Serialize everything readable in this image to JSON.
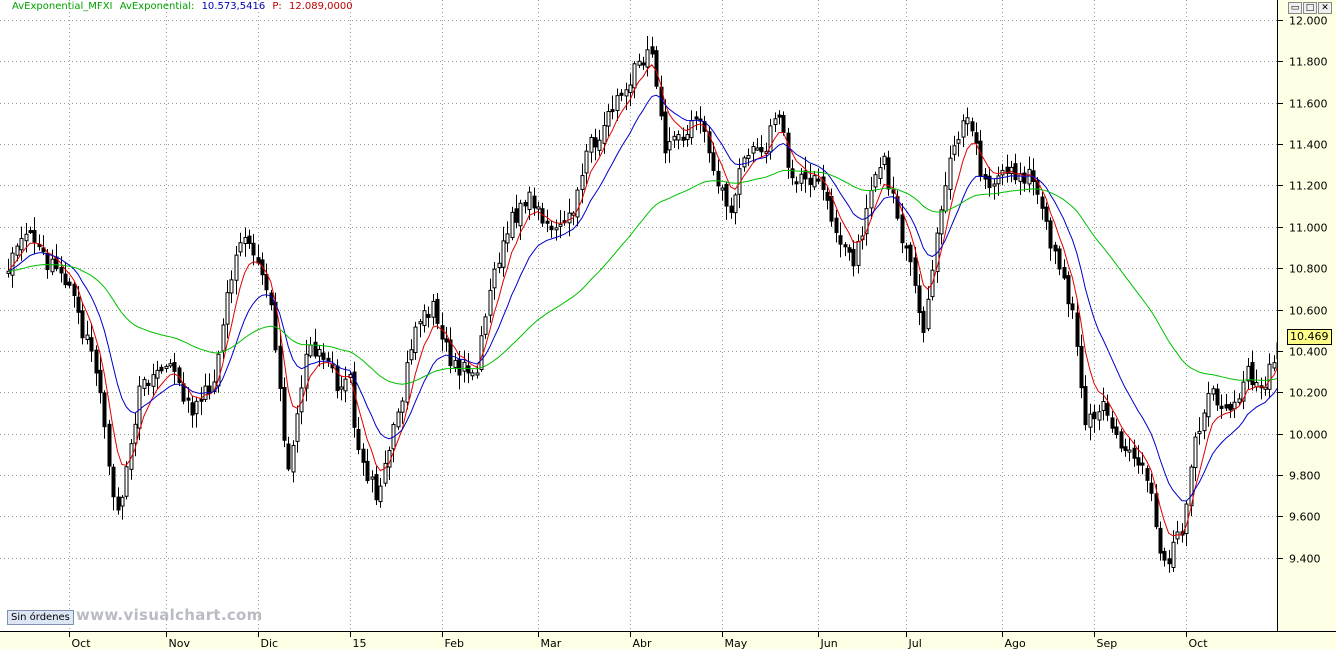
{
  "header": {
    "label1": "AvExponential_MFXI",
    "label2": "AvExponential:",
    "value": "10.573,5416",
    "plabel": "P:",
    "pvalue": "12.089,0000"
  },
  "window_buttons": {
    "restore": "▭",
    "maximize": "□",
    "close": "✕"
  },
  "orders_label": "Sin órdenes",
  "watermark": "www.visualchart.com",
  "last_value_label": "10.469",
  "colors": {
    "grid": "#9a9a9a",
    "fast_ma": "#e00000",
    "mid_ma": "#0000c8",
    "slow_ma": "#00c000",
    "axis_bg": "#ffffe6"
  },
  "chart_data": {
    "type": "candlestick",
    "ylim": [
      9200,
      12000
    ],
    "yticks": [
      9400,
      9600,
      9800,
      10000,
      10200,
      10400,
      10600,
      10800,
      11000,
      11200,
      11400,
      11600,
      11800,
      12000
    ],
    "ytick_labels": [
      "9.400",
      "9.600",
      "9.800",
      "10.000",
      "10.200",
      "10.400",
      "10.600",
      "10.800",
      "11.000",
      "11.200",
      "11.400",
      "11.600",
      "11.800",
      "12.000"
    ],
    "months": [
      "Oct",
      "Nov",
      "Dic",
      "15",
      "Feb",
      "Mar",
      "Abr",
      "May",
      "Jun",
      "Jul",
      "Ago",
      "Sep",
      "Oct"
    ],
    "month_start_index": [
      14,
      36,
      57,
      78,
      99,
      121,
      142,
      163,
      185,
      205,
      227,
      248,
      269
    ],
    "n_bars": 292,
    "close_path": [
      [
        0,
        10830
      ],
      [
        5,
        10950
      ],
      [
        8,
        10850
      ],
      [
        14,
        10700
      ],
      [
        20,
        10300
      ],
      [
        25,
        9600
      ],
      [
        30,
        10200
      ],
      [
        36,
        10350
      ],
      [
        42,
        10100
      ],
      [
        47,
        10250
      ],
      [
        52,
        10900
      ],
      [
        55,
        10950
      ],
      [
        60,
        10600
      ],
      [
        64,
        9800
      ],
      [
        68,
        10400
      ],
      [
        72,
        10350
      ],
      [
        75,
        10250
      ],
      [
        78,
        10250
      ],
      [
        80,
        9900
      ],
      [
        84,
        9700
      ],
      [
        88,
        10000
      ],
      [
        93,
        10500
      ],
      [
        97,
        10600
      ],
      [
        100,
        10400
      ],
      [
        103,
        10300
      ],
      [
        107,
        10300
      ],
      [
        110,
        10700
      ],
      [
        114,
        11000
      ],
      [
        119,
        11150
      ],
      [
        124,
        11000
      ],
      [
        129,
        11100
      ],
      [
        133,
        11400
      ],
      [
        138,
        11550
      ],
      [
        143,
        11750
      ],
      [
        147,
        11850
      ],
      [
        150,
        11400
      ],
      [
        154,
        11450
      ],
      [
        158,
        11550
      ],
      [
        161,
        11300
      ],
      [
        165,
        11050
      ],
      [
        168,
        11350
      ],
      [
        173,
        11400
      ],
      [
        176,
        11550
      ],
      [
        179,
        11200
      ],
      [
        184,
        11250
      ],
      [
        187,
        11100
      ],
      [
        189,
        11000
      ],
      [
        193,
        10800
      ],
      [
        197,
        11200
      ],
      [
        200,
        11300
      ],
      [
        203,
        11050
      ],
      [
        207,
        10700
      ],
      [
        209,
        10500
      ],
      [
        212,
        10950
      ],
      [
        215,
        11350
      ],
      [
        219,
        11550
      ],
      [
        223,
        11200
      ],
      [
        228,
        11250
      ],
      [
        233,
        11250
      ],
      [
        237,
        11000
      ],
      [
        240,
        10800
      ],
      [
        243,
        10600
      ],
      [
        246,
        10000
      ],
      [
        250,
        10200
      ],
      [
        253,
        10000
      ],
      [
        257,
        9850
      ],
      [
        260,
        9800
      ],
      [
        264,
        9350
      ],
      [
        268,
        9550
      ],
      [
        271,
        10000
      ],
      [
        275,
        10200
      ],
      [
        279,
        10100
      ],
      [
        283,
        10300
      ],
      [
        286,
        10200
      ],
      [
        291,
        10469
      ]
    ],
    "last_value": 10469,
    "series": [
      {
        "name": "AvExponential (red)",
        "period": 6
      },
      {
        "name": "AvExponential (blue)",
        "period": 15
      },
      {
        "name": "AvExponential (green)",
        "period": 60
      }
    ]
  }
}
